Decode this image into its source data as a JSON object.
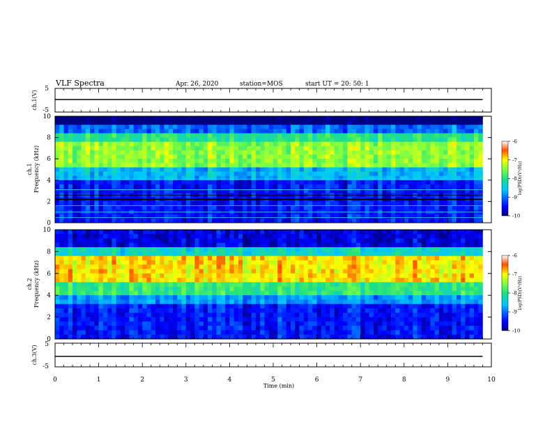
{
  "header": {
    "title": "VLF Spectra",
    "date": "Apr. 26, 2020",
    "station": "station=MOS",
    "start": "start  UT  =   20: 50: 1"
  },
  "chart_data": [
    {
      "type": "line",
      "panel": "ch1-waveform",
      "ylabel": "ch.1(V)",
      "ylim": [
        -5,
        5
      ],
      "yticks": [
        "5",
        "-5"
      ],
      "series": [
        {
          "x": [
            0,
            9.8
          ],
          "y": [
            0,
            0
          ]
        }
      ]
    },
    {
      "type": "heatmap",
      "panel": "ch1-spectrogram",
      "ylabel": "ch.1\nFrequency (kHz)",
      "ylabel_top": "ch.1",
      "ylabel_bottom": "Frequency (kHz)",
      "xlim": [
        0,
        10
      ],
      "ylim": [
        0,
        10
      ],
      "yticks": [
        "0",
        "2",
        "4",
        "6",
        "8",
        "10"
      ],
      "data_extent_min": 9.8,
      "colorbar": {
        "label": "log(PSD)(V²/Hz)",
        "range": [
          -10,
          -6
        ],
        "ticks": [
          "-6",
          "-7",
          "-8",
          "-9",
          "-10"
        ]
      },
      "approx_intensity_profile": [
        {
          "freq_khz": [
            9.0,
            10.0
          ],
          "log_psd": -10
        },
        {
          "freq_khz": [
            5.0,
            8.5
          ],
          "log_psd": -7.3
        },
        {
          "freq_khz": [
            0.0,
            4.0
          ],
          "log_psd": -9.3
        }
      ]
    },
    {
      "type": "heatmap",
      "panel": "ch2-spectrogram",
      "ylabel": "ch.2\nFrequency (kHz)",
      "ylabel_top": "ch.2",
      "ylabel_bottom": "Frequency (kHz)",
      "xlim": [
        0,
        10
      ],
      "ylim": [
        0,
        10
      ],
      "yticks": [
        "0",
        "2",
        "4",
        "6",
        "8",
        "10"
      ],
      "data_extent_min": 9.8,
      "colorbar": {
        "label": "log(PSD)(V²/Hz)",
        "range": [
          -10,
          -6
        ],
        "ticks": [
          "-6",
          "-7",
          "-8",
          "-9",
          "-10"
        ]
      },
      "approx_intensity_profile": [
        {
          "freq_khz": [
            8.5,
            10.0
          ],
          "log_psd": -9.5
        },
        {
          "freq_khz": [
            5.0,
            7.5
          ],
          "log_psd": -6.8
        },
        {
          "freq_khz": [
            0.0,
            3.5
          ],
          "log_psd": -9.3
        }
      ]
    },
    {
      "type": "line",
      "panel": "ch3-waveform",
      "ylabel": "ch.3(V)",
      "ylim": [
        -5,
        5
      ],
      "yticks": [
        "5",
        "-5"
      ],
      "series": [
        {
          "x": [
            0,
            9.8
          ],
          "y": [
            0,
            0
          ]
        }
      ]
    }
  ],
  "x_axis": {
    "label": "Time (min)",
    "range": [
      0,
      10
    ],
    "ticks": [
      "0",
      "1",
      "2",
      "3",
      "4",
      "5",
      "6",
      "7",
      "8",
      "9",
      "10"
    ]
  }
}
